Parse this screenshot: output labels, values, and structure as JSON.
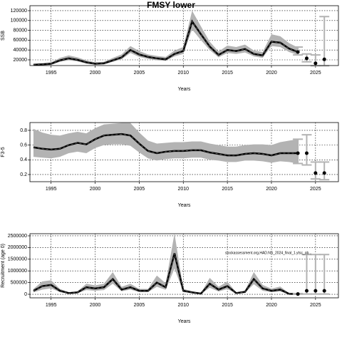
{
  "chart_data": [
    {
      "type": "line",
      "title": "FMSY lower",
      "ylabel": "SSB",
      "xlabel": "Years",
      "xlim": [
        1992.6,
        2027.6
      ],
      "xticks": [
        1995,
        2000,
        2005,
        2010,
        2015,
        2020,
        2025
      ],
      "ylim": [
        8400,
        130100
      ],
      "yticks": [
        20000,
        40000,
        60000,
        80000,
        100000,
        120000
      ],
      "grid": true,
      "color": "#000000",
      "band_color": "#b3b3b3",
      "bar_color": "#b3b3b3",
      "x": [
        1993,
        1994,
        1995,
        1996,
        1997,
        1998,
        1999,
        2000,
        2001,
        2002,
        2003,
        2004,
        2005,
        2006,
        2007,
        2008,
        2009,
        2010,
        2011,
        2012,
        2013,
        2014,
        2015,
        2016,
        2017,
        2018,
        2019,
        2020,
        2021,
        2022,
        2023
      ],
      "values": [
        10000,
        11000,
        12000,
        19000,
        23000,
        20000,
        15000,
        12000,
        13000,
        19000,
        25000,
        40000,
        31000,
        26000,
        23000,
        21000,
        32000,
        38000,
        98000,
        72000,
        47000,
        30000,
        40000,
        38000,
        42000,
        32000,
        29000,
        57000,
        55000,
        43000,
        36000
      ],
      "lower": [
        8000,
        9000,
        10000,
        16000,
        19000,
        17000,
        12000,
        10000,
        11000,
        16000,
        21000,
        34000,
        26000,
        22000,
        19000,
        18000,
        27000,
        32000,
        82000,
        60000,
        40000,
        25000,
        34000,
        32000,
        35000,
        27000,
        24000,
        48000,
        46000,
        36000,
        30000
      ],
      "upper": [
        12000,
        13000,
        15000,
        24000,
        29000,
        25000,
        19000,
        15000,
        16000,
        24000,
        31000,
        48000,
        38000,
        31000,
        28000,
        26000,
        39000,
        46000,
        120000,
        88000,
        57000,
        37000,
        49000,
        46000,
        51000,
        39000,
        36000,
        72000,
        68000,
        54000,
        45000
      ],
      "projection": {
        "x": [
          2023,
          2024,
          2025,
          2026
        ],
        "values": [
          36000,
          23000,
          13000,
          21000
        ],
        "lower": [
          30000,
          16000,
          8000,
          8000
        ],
        "upper": [
          46000,
          32000,
          30000,
          108000
        ]
      }
    },
    {
      "type": "line",
      "ylabel": "F3-5",
      "xlabel": "Years",
      "xlim": [
        1992.6,
        2027.6
      ],
      "xticks": [
        1995,
        2000,
        2005,
        2010,
        2015,
        2020,
        2025
      ],
      "ylim": [
        0.103,
        0.906
      ],
      "yticks": [
        0.2,
        0.4,
        0.6,
        0.8
      ],
      "grid": true,
      "color": "#000000",
      "band_color": "#b3b3b3",
      "bar_color": "#b3b3b3",
      "x": [
        1993,
        1994,
        1995,
        1996,
        1997,
        1998,
        1999,
        2000,
        2001,
        2002,
        2003,
        2004,
        2005,
        2006,
        2007,
        2008,
        2009,
        2010,
        2011,
        2012,
        2013,
        2014,
        2015,
        2016,
        2017,
        2018,
        2019,
        2020,
        2021,
        2022,
        2023
      ],
      "values": [
        0.57,
        0.55,
        0.54,
        0.55,
        0.6,
        0.63,
        0.61,
        0.68,
        0.73,
        0.74,
        0.75,
        0.73,
        0.62,
        0.52,
        0.49,
        0.51,
        0.52,
        0.52,
        0.53,
        0.53,
        0.5,
        0.48,
        0.46,
        0.46,
        0.48,
        0.49,
        0.48,
        0.46,
        0.49,
        0.49,
        0.49
      ],
      "lower": [
        0.44,
        0.43,
        0.42,
        0.44,
        0.49,
        0.51,
        0.49,
        0.56,
        0.6,
        0.61,
        0.61,
        0.59,
        0.5,
        0.42,
        0.39,
        0.41,
        0.42,
        0.42,
        0.43,
        0.43,
        0.4,
        0.39,
        0.37,
        0.37,
        0.39,
        0.39,
        0.38,
        0.36,
        0.38,
        0.37,
        0.35
      ],
      "upper": [
        0.82,
        0.77,
        0.74,
        0.73,
        0.76,
        0.78,
        0.76,
        0.83,
        0.88,
        0.89,
        0.9,
        0.9,
        0.77,
        0.66,
        0.62,
        0.63,
        0.64,
        0.64,
        0.65,
        0.65,
        0.62,
        0.6,
        0.58,
        0.58,
        0.6,
        0.61,
        0.61,
        0.6,
        0.64,
        0.66,
        0.68
      ],
      "projection": {
        "x": [
          2023,
          2024,
          2025,
          2026
        ],
        "values": [
          0.49,
          0.49,
          0.22,
          0.22
        ],
        "lower": [
          0.35,
          0.33,
          0.14,
          0.13
        ],
        "upper": [
          0.68,
          0.74,
          0.37,
          0.37
        ]
      }
    },
    {
      "type": "line",
      "ylabel": "Recruitment (age 0)",
      "xlabel": "Years",
      "annotation": "stockassessment.org,HAD.NS_2024_final_1.ytsc_ob...",
      "xlim": [
        1992.6,
        2027.6
      ],
      "xticks": [
        1995,
        2000,
        2005,
        2010,
        2015,
        2020,
        2025
      ],
      "ylim": [
        -152000,
        2591000
      ],
      "yticks": [
        0,
        500000,
        1000000,
        1500000,
        2000000,
        2500000
      ],
      "grid": true,
      "color": "#000000",
      "band_color": "#b3b3b3",
      "bar_color": "#b3b3b3",
      "x": [
        1993,
        1994,
        1995,
        1996,
        1997,
        1998,
        1999,
        2000,
        2001,
        2002,
        2003,
        2004,
        2005,
        2006,
        2007,
        2008,
        2009,
        2010,
        2011,
        2012,
        2013,
        2014,
        2015,
        2016,
        2017,
        2018,
        2019,
        2020,
        2021,
        2022,
        2023
      ],
      "values": [
        150000,
        350000,
        400000,
        150000,
        50000,
        80000,
        300000,
        250000,
        300000,
        650000,
        200000,
        300000,
        150000,
        150000,
        500000,
        300000,
        1750000,
        150000,
        80000,
        30000,
        450000,
        200000,
        350000,
        50000,
        100000,
        650000,
        250000,
        150000,
        200000,
        20000,
        10000
      ],
      "lower": [
        80000,
        200000,
        250000,
        90000,
        30000,
        50000,
        180000,
        150000,
        180000,
        450000,
        130000,
        200000,
        90000,
        90000,
        320000,
        190000,
        1100000,
        90000,
        50000,
        15000,
        280000,
        120000,
        220000,
        30000,
        60000,
        430000,
        150000,
        90000,
        120000,
        10000,
        5000
      ],
      "upper": [
        230000,
        550000,
        600000,
        230000,
        80000,
        130000,
        450000,
        380000,
        450000,
        950000,
        320000,
        450000,
        230000,
        230000,
        800000,
        470000,
        2600000,
        230000,
        130000,
        50000,
        700000,
        320000,
        540000,
        80000,
        160000,
        950000,
        400000,
        240000,
        330000,
        40000,
        30000
      ],
      "projection": {
        "x": [
          2023,
          2024,
          2025,
          2026
        ],
        "values": [
          10000,
          150000,
          150000,
          150000
        ],
        "lower": [
          5000,
          10000,
          10000,
          10000
        ],
        "upper": [
          30000,
          1700000,
          1700000,
          1700000
        ]
      }
    }
  ]
}
